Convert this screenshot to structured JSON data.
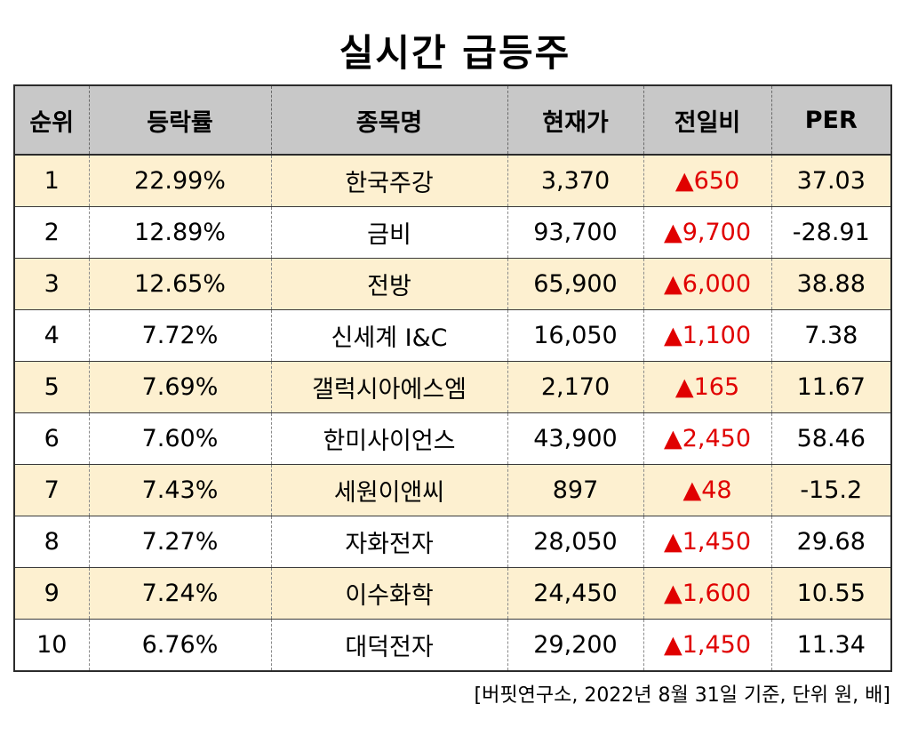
{
  "title": "실시간 급등주",
  "headers": {
    "rank": "순위",
    "change_rate": "등락률",
    "stock_name": "종목명",
    "current_price": "현재가",
    "day_change": "전일비",
    "per": "PER"
  },
  "rows": [
    {
      "rank": "1",
      "change_rate": "22.99%",
      "stock_name": "한국주강",
      "current_price": "3,370",
      "day_change": "▲650",
      "per": "37.03"
    },
    {
      "rank": "2",
      "change_rate": "12.89%",
      "stock_name": "금비",
      "current_price": "93,700",
      "day_change": "▲9,700",
      "per": "-28.91"
    },
    {
      "rank": "3",
      "change_rate": "12.65%",
      "stock_name": "전방",
      "current_price": "65,900",
      "day_change": "▲6,000",
      "per": "38.88"
    },
    {
      "rank": "4",
      "change_rate": "7.72%",
      "stock_name": "신세계 I&C",
      "current_price": "16,050",
      "day_change": "▲1,100",
      "per": "7.38"
    },
    {
      "rank": "5",
      "change_rate": "7.69%",
      "stock_name": "갤럭시아에스엠",
      "current_price": "2,170",
      "day_change": "▲165",
      "per": "11.67"
    },
    {
      "rank": "6",
      "change_rate": "7.60%",
      "stock_name": "한미사이언스",
      "current_price": "43,900",
      "day_change": "▲2,450",
      "per": "58.46"
    },
    {
      "rank": "7",
      "change_rate": "7.43%",
      "stock_name": "세원이앤씨",
      "current_price": "897",
      "day_change": "▲48",
      "per": "-15.2"
    },
    {
      "rank": "8",
      "change_rate": "7.27%",
      "stock_name": "자화전자",
      "current_price": "28,050",
      "day_change": "▲1,450",
      "per": "29.68"
    },
    {
      "rank": "9",
      "change_rate": "7.24%",
      "stock_name": "이수화학",
      "current_price": "24,450",
      "day_change": "▲1,600",
      "per": "10.55"
    },
    {
      "rank": "10",
      "change_rate": "6.76%",
      "stock_name": "대덕전자",
      "current_price": "29,200",
      "day_change": "▲1,450",
      "per": "11.34"
    }
  ],
  "footnote": "[버핏연구소, 2022년 8월 31일 기준, 단위 원, 배]",
  "colors": {
    "header_bg": "#c8c8c8",
    "odd_row_bg": "#fdf0d0",
    "even_row_bg": "#ffffff",
    "up_change": "#e00000"
  }
}
